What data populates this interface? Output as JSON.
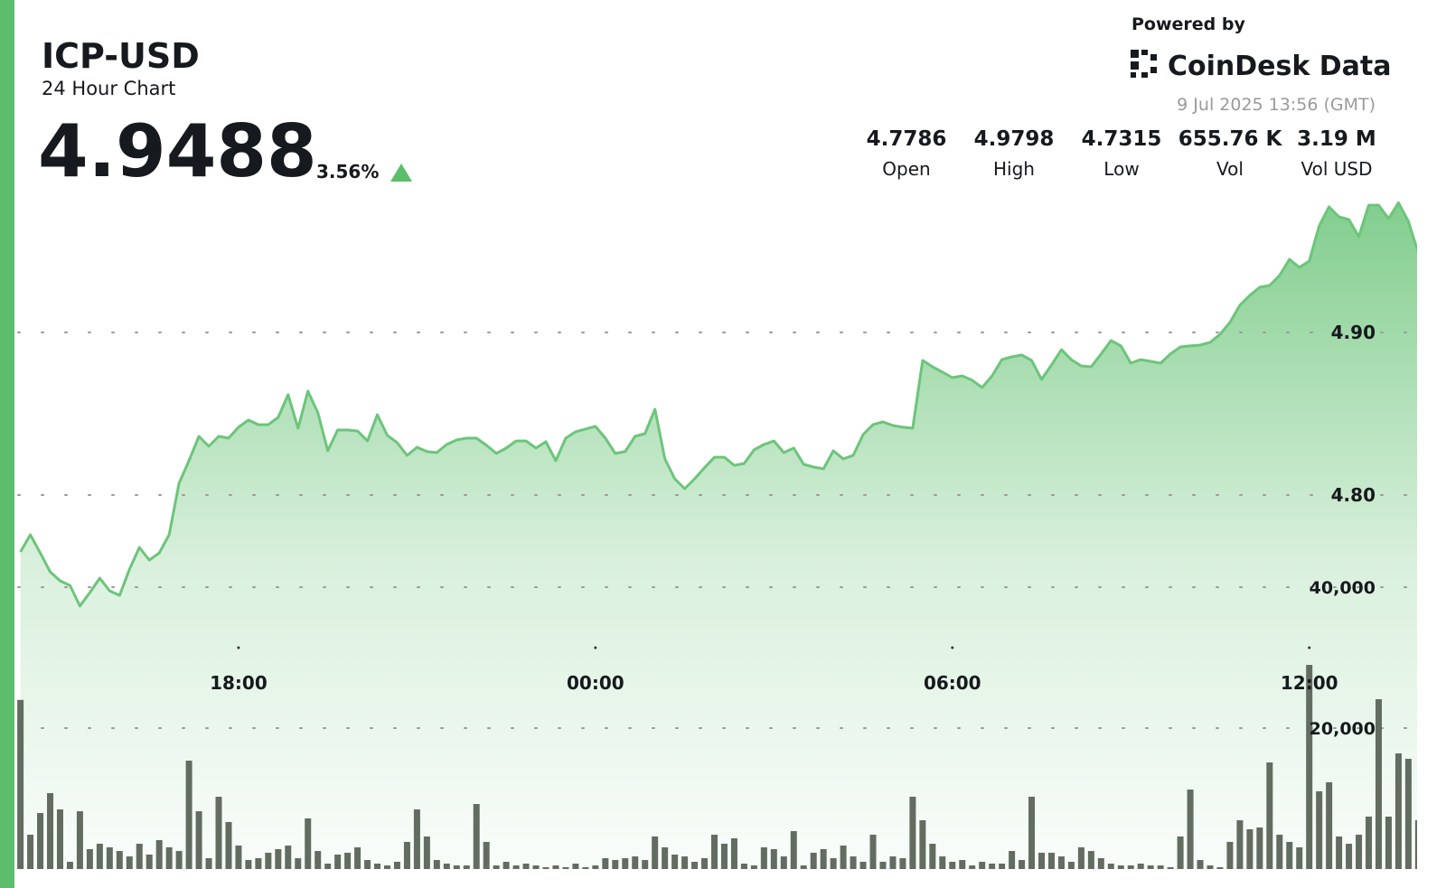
{
  "header": {
    "symbol": "ICP-USD",
    "subtitle": "24 Hour Chart",
    "price": "4.9488",
    "change": "3.56%",
    "powered_by": "Powered by",
    "brand": "CoinDesk Data",
    "timestamp": "9 Jul 2025 13:56 (GMT)",
    "stats": [
      {
        "value": "4.7786",
        "label": "Open"
      },
      {
        "value": "4.9798",
        "label": "High"
      },
      {
        "value": "4.7315",
        "label": "Low"
      },
      {
        "value": "655.76 K",
        "label": "Vol"
      },
      {
        "value": "3.19 M",
        "label": "Vol USD"
      }
    ]
  },
  "chart_data": {
    "type": "line",
    "categories": [
      null,
      null,
      null,
      null,
      null,
      null,
      null,
      null,
      null,
      null,
      null,
      null,
      null,
      null,
      null,
      null,
      null,
      null,
      null,
      null,
      null,
      null,
      "18:00",
      null,
      null,
      null,
      null,
      null,
      null,
      null,
      null,
      null,
      null,
      null,
      null,
      null,
      null,
      null,
      null,
      null,
      null,
      null,
      null,
      null,
      null,
      null,
      null,
      null,
      null,
      null,
      null,
      null,
      null,
      null,
      null,
      null,
      null,
      null,
      "00:00",
      null,
      null,
      null,
      null,
      null,
      null,
      null,
      null,
      null,
      null,
      null,
      null,
      null,
      null,
      null,
      null,
      null,
      null,
      null,
      null,
      null,
      null,
      null,
      null,
      null,
      null,
      null,
      null,
      null,
      null,
      null,
      null,
      null,
      null,
      null,
      "06:00",
      null,
      null,
      null,
      null,
      null,
      null,
      null,
      null,
      null,
      null,
      null,
      null,
      null,
      null,
      null,
      null,
      null,
      null,
      null,
      null,
      null,
      null,
      null,
      null,
      null,
      null,
      null,
      null,
      null,
      null,
      null,
      null,
      null,
      null,
      null,
      "12:00",
      null,
      null,
      null,
      null,
      null,
      null,
      null,
      null,
      null,
      null,
      null
    ],
    "series": [
      {
        "color": "#6cc57a",
        "values": [
          4.765,
          4.7756,
          4.7644,
          4.7528,
          4.7472,
          4.7444,
          4.7317,
          4.74,
          4.7489,
          4.7411,
          4.7383,
          4.7544,
          4.7678,
          4.76,
          4.7644,
          4.7756,
          4.8072,
          4.8211,
          4.8361,
          4.83,
          4.8361,
          4.835,
          4.8417,
          4.8461,
          4.8433,
          4.8433,
          4.8478,
          4.8617,
          4.8411,
          4.8639,
          4.8506,
          4.8272,
          4.84,
          4.84,
          4.8394,
          4.8333,
          4.8494,
          4.8367,
          4.8322,
          4.8244,
          4.8294,
          4.8267,
          4.8261,
          4.8311,
          4.8339,
          4.835,
          4.835,
          4.8306,
          4.8256,
          4.8289,
          4.8333,
          4.8333,
          4.8289,
          4.8328,
          4.8211,
          4.835,
          4.8389,
          4.8406,
          4.8422,
          4.835,
          4.8256,
          4.8267,
          4.8361,
          4.8378,
          4.8528,
          4.8222,
          4.81,
          4.8039,
          4.81,
          4.8167,
          4.8233,
          4.8233,
          4.8183,
          4.8194,
          4.8278,
          4.8311,
          4.8333,
          4.8261,
          4.8289,
          4.8189,
          4.8172,
          4.8161,
          4.8272,
          4.8222,
          4.8244,
          4.8372,
          4.8433,
          4.845,
          4.8428,
          4.8417,
          4.8411,
          4.8828,
          4.8789,
          4.8756,
          4.8722,
          4.8733,
          4.8706,
          4.8661,
          4.8733,
          4.8833,
          4.885,
          4.8861,
          4.8828,
          4.8711,
          4.88,
          4.8894,
          4.8833,
          4.8794,
          4.8789,
          4.8867,
          4.895,
          4.8917,
          4.8811,
          4.8833,
          4.8822,
          4.8811,
          4.8867,
          4.8911,
          4.8917,
          4.8922,
          4.8939,
          4.8989,
          4.9061,
          4.9167,
          4.9228,
          4.9278,
          4.9289,
          4.935,
          4.945,
          4.94,
          4.9439,
          4.9656,
          4.9772,
          4.9711,
          4.9694,
          4.9589,
          4.9783,
          4.9783,
          4.97,
          4.9798,
          4.9683,
          4.9488
        ]
      },
      {
        "color": "#626c60",
        "axis": "y2",
        "values": [
          24000,
          4870,
          7950,
          10770,
          8460,
          1030,
          8200,
          2820,
          3590,
          3080,
          2560,
          1790,
          3590,
          2050,
          4100,
          3080,
          2560,
          15380,
          8200,
          1540,
          10260,
          6670,
          3330,
          1280,
          1540,
          2310,
          2820,
          3330,
          1540,
          7180,
          2560,
          770,
          2050,
          2310,
          3080,
          1280,
          770,
          510,
          1030,
          3850,
          8460,
          4620,
          1280,
          770,
          510,
          510,
          9230,
          3850,
          510,
          1030,
          510,
          770,
          510,
          260,
          510,
          260,
          770,
          260,
          510,
          1540,
          1280,
          1540,
          1790,
          1280,
          4620,
          3080,
          2050,
          1790,
          1030,
          1540,
          4870,
          3590,
          4360,
          770,
          510,
          3080,
          2820,
          1790,
          5380,
          510,
          2310,
          2820,
          1540,
          3330,
          1790,
          1030,
          4870,
          1030,
          1790,
          1540,
          10260,
          6920,
          3590,
          1790,
          1030,
          1280,
          510,
          1030,
          770,
          770,
          2560,
          1280,
          10260,
          2310,
          2310,
          1790,
          1030,
          3080,
          2560,
          1540,
          770,
          510,
          510,
          770,
          510,
          510,
          260,
          4620,
          11280,
          1280,
          510,
          260,
          3850,
          6920,
          5640,
          5900,
          15130,
          4870,
          3850,
          3080,
          28970,
          11030,
          12310,
          4620,
          3590,
          4870,
          7440,
          24100,
          7440,
          16410,
          15640,
          6920
        ]
      }
    ],
    "ylim": [
      4.57,
      5.0
    ],
    "yticks": [
      {
        "value": 4.8,
        "label": "4.80"
      },
      {
        "value": 4.9,
        "label": "4.90"
      }
    ],
    "y2lim": [
      0,
      100000
    ],
    "y2ticks": [
      {
        "value": 20000,
        "label": "20,000"
      },
      {
        "value": 40000,
        "label": "40,000"
      }
    ],
    "grid": true
  }
}
